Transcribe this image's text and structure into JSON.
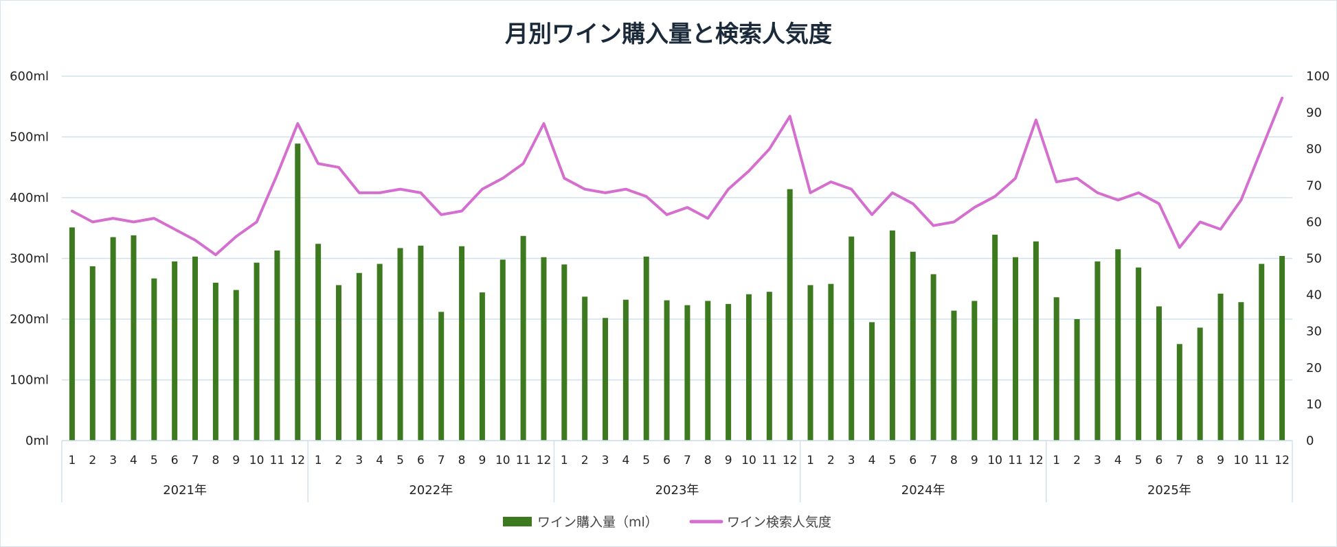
{
  "chart_data": {
    "type": "bar+line",
    "title": "月別ワイン購入量と検索人気度",
    "left_axis": {
      "ylim": [
        0,
        600
      ],
      "ticks": [
        "0ml",
        "100ml",
        "200ml",
        "300ml",
        "400ml",
        "500ml",
        "600ml"
      ]
    },
    "right_axis": {
      "ylim": [
        0,
        100
      ],
      "ticks": [
        "0",
        "10",
        "20",
        "30",
        "40",
        "50",
        "60",
        "70",
        "80",
        "90",
        "100"
      ]
    },
    "years": [
      "2021年",
      "2022年",
      "2023年",
      "2024年",
      "2025年"
    ],
    "months": [
      "1",
      "2",
      "3",
      "4",
      "5",
      "6",
      "7",
      "8",
      "9",
      "10",
      "11",
      "12"
    ],
    "grid": true,
    "legend_position": "bottom",
    "series": [
      {
        "name": "ワイン購入量（ml）",
        "type": "bar",
        "axis": "left",
        "color": "#3d7a1f",
        "values": [
          351,
          287,
          335,
          338,
          267,
          295,
          303,
          260,
          248,
          293,
          313,
          489,
          324,
          256,
          276,
          291,
          317,
          321,
          212,
          320,
          244,
          298,
          337,
          302,
          290,
          237,
          202,
          232,
          303,
          231,
          223,
          230,
          225,
          241,
          245,
          414,
          256,
          258,
          336,
          195,
          346,
          311,
          274,
          214,
          230,
          339,
          302,
          328,
          236,
          200,
          295,
          315,
          285,
          221,
          159,
          186,
          242,
          228,
          291,
          304
        ]
      },
      {
        "name": "ワイン検索人気度",
        "type": "line",
        "axis": "right",
        "color": "#d56fcf",
        "values": [
          63,
          60,
          61,
          60,
          61,
          58,
          55,
          51,
          56,
          60,
          73,
          87,
          76,
          75,
          68,
          68,
          69,
          68,
          62,
          63,
          69,
          72,
          76,
          87,
          72,
          69,
          68,
          69,
          67,
          62,
          64,
          61,
          69,
          74,
          80,
          89,
          68,
          71,
          69,
          62,
          68,
          65,
          59,
          60,
          64,
          67,
          72,
          88,
          71,
          72,
          68,
          66,
          68,
          65,
          53,
          60,
          58,
          66,
          80,
          94
        ]
      }
    ]
  }
}
